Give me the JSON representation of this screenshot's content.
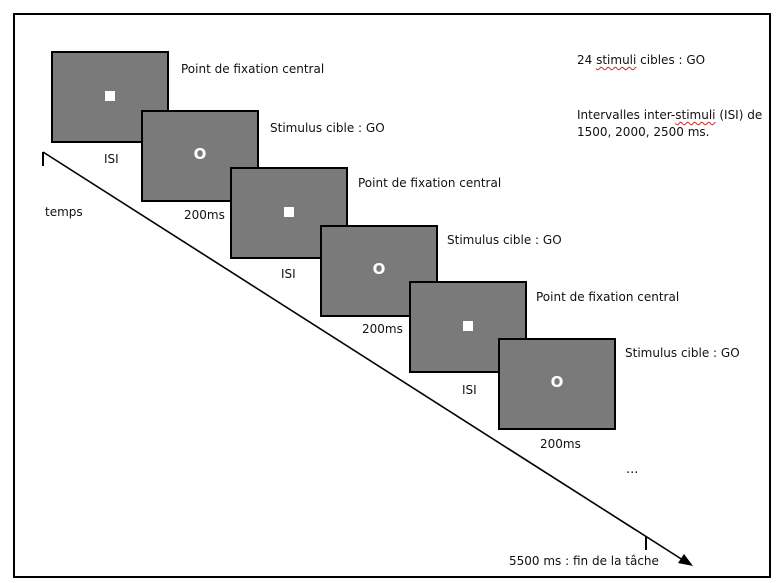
{
  "info": {
    "go_prefix": "24 ",
    "go_word": "stimuli",
    "go_suffix": " cibles : GO",
    "isi_prefix": "Intervalles inter-",
    "isi_word": "stimuli",
    "isi_suffix": " (ISI) de",
    "isi_line2": "1500, 2000, 2500 ms."
  },
  "time_label": "temps",
  "end_label": "5500 ms : fin de la tâche",
  "ellipsis": "...",
  "stimulus_symbol": "O",
  "sequence": [
    {
      "type": "fixation",
      "label": "Point de fixation central",
      "duration": "ISI"
    },
    {
      "type": "target",
      "label": "Stimulus cible : GO",
      "duration": "200ms"
    },
    {
      "type": "fixation",
      "label": "Point de fixation central",
      "duration": "ISI"
    },
    {
      "type": "target",
      "label": "Stimulus cible : GO",
      "duration": "200ms"
    },
    {
      "type": "fixation",
      "label": "Point de fixation central",
      "duration": "ISI"
    },
    {
      "type": "target",
      "label": "Stimulus cible : GO",
      "duration": "200ms"
    }
  ]
}
